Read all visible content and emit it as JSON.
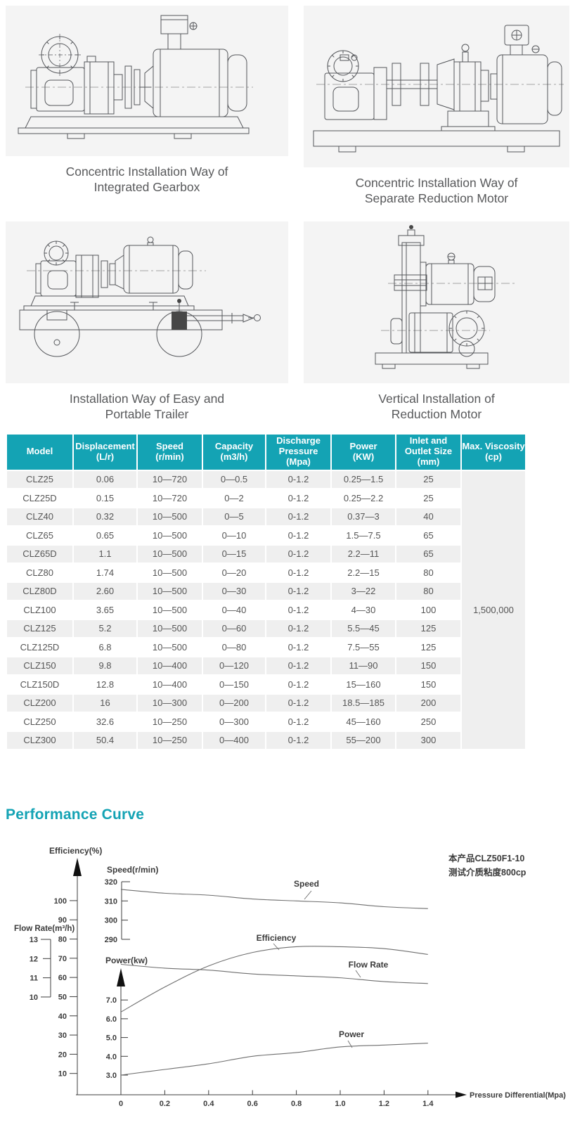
{
  "page": {
    "heading_performance": "Performance Curve"
  },
  "installation": {
    "items": [
      {
        "caption": [
          "Concentric Installation Way of",
          "Integrated Gearbox"
        ]
      },
      {
        "caption": [
          "Concentric Installation Way of",
          "Separate Reduction Motor"
        ]
      },
      {
        "caption": [
          "Installation Way of Easy and",
          "Portable Trailer"
        ]
      },
      {
        "caption": [
          "Vertical Installation of",
          "Reduction Motor"
        ]
      }
    ]
  },
  "spec_table": {
    "headers": [
      {
        "lines": [
          "Model"
        ]
      },
      {
        "lines": [
          "Displacement",
          "(L/r)"
        ]
      },
      {
        "lines": [
          "Speed",
          "(r/min)"
        ]
      },
      {
        "lines": [
          "Capacity",
          "(m3/h)"
        ]
      },
      {
        "lines": [
          "Discharge",
          "Pressure",
          "(Mpa)"
        ]
      },
      {
        "lines": [
          "Power",
          "(KW)"
        ]
      },
      {
        "lines": [
          "Inlet and",
          "Outlet Size",
          "(mm)"
        ]
      },
      {
        "lines": [
          "Max. Viscosity",
          "(cp)"
        ]
      }
    ],
    "rows": [
      [
        "CLZ25",
        "0.06",
        "10—720",
        "0—0.5",
        "0-1.2",
        "0.25—1.5",
        "25"
      ],
      [
        "CLZ25D",
        "0.15",
        "10—720",
        "0—2",
        "0-1.2",
        "0.25—2.2",
        "25"
      ],
      [
        "CLZ40",
        "0.32",
        "10—500",
        "0—5",
        "0-1.2",
        "0.37—3",
        "40"
      ],
      [
        "CLZ65",
        "0.65",
        "10—500",
        "0—10",
        "0-1.2",
        "1.5—7.5",
        "65"
      ],
      [
        "CLZ65D",
        "1.1",
        "10—500",
        "0—15",
        "0-1.2",
        "2.2—11",
        "65"
      ],
      [
        "CLZ80",
        "1.74",
        "10—500",
        "0—20",
        "0-1.2",
        "2.2—15",
        "80"
      ],
      [
        "CLZ80D",
        "2.60",
        "10—500",
        "0—30",
        "0-1.2",
        "3—22",
        "80"
      ],
      [
        "CLZ100",
        "3.65",
        "10—500",
        "0—40",
        "0-1.2",
        "4—30",
        "100"
      ],
      [
        "CLZ125",
        "5.2",
        "10—500",
        "0—60",
        "0-1.2",
        "5.5—45",
        "125"
      ],
      [
        "CLZ125D",
        "6.8",
        "10—500",
        "0—80",
        "0-1.2",
        "7.5—55",
        "125"
      ],
      [
        "CLZ150",
        "9.8",
        "10—400",
        "0—120",
        "0-1.2",
        "11—90",
        "150"
      ],
      [
        "CLZ150D",
        "12.8",
        "10—400",
        "0—150",
        "0-1.2",
        "15—160",
        "150"
      ],
      [
        "CLZ200",
        "16",
        "10—300",
        "0—200",
        "0-1.2",
        "18.5—185",
        "200"
      ],
      [
        "CLZ250",
        "32.6",
        "10—250",
        "0—300",
        "0-1.2",
        "45—160",
        "250"
      ],
      [
        "CLZ300",
        "50.4",
        "10—250",
        "0—400",
        "0-1.2",
        "55—200",
        "300"
      ]
    ],
    "max_viscosity_value": "1,500,000"
  },
  "chart_data": {
    "type": "line",
    "title": "Performance Curve",
    "xlabel": "Pressure Differential(Mpa)",
    "x": [
      0,
      0.2,
      0.4,
      0.6,
      0.8,
      1.0,
      1.2,
      1.4
    ],
    "x_tick_labels": [
      "0",
      "0.2",
      "0.4",
      "0.6",
      "0.8",
      "1.0",
      "1.2",
      "1.4"
    ],
    "grid": false,
    "legend_position": "labels-on-curves",
    "axes": {
      "efficiency": {
        "label": "Efficiency(%)",
        "ticks": [
          10,
          20,
          30,
          40,
          50,
          60,
          70,
          80,
          90,
          100
        ]
      },
      "speed": {
        "label": "Speed(r/min)",
        "ticks": [
          290,
          300,
          310,
          320
        ]
      },
      "flow": {
        "label": "Flow Rate(m³/h)",
        "ticks": [
          10,
          11,
          12,
          13
        ]
      },
      "power": {
        "label": "Power(kw)",
        "ticks": [
          "3.0",
          "4.0",
          "5.0",
          "6.0",
          "7.0"
        ]
      }
    },
    "series": [
      {
        "name": "Speed",
        "axis": "speed",
        "unit": "r/min",
        "values": [
          316,
          314,
          313,
          311,
          310,
          309,
          307,
          306
        ]
      },
      {
        "name": "Efficiency",
        "axis": "efficiency",
        "unit": "%",
        "values": [
          42,
          55,
          66,
          73,
          76,
          76,
          75,
          72
        ]
      },
      {
        "name": "Flow Rate",
        "axis": "flow",
        "unit": "m3/h",
        "values": [
          11.7,
          11.5,
          11.4,
          11.2,
          11.1,
          11.0,
          10.8,
          10.7
        ]
      },
      {
        "name": "Power",
        "axis": "power",
        "unit": "kw",
        "values": [
          3.0,
          3.3,
          3.6,
          4.0,
          4.2,
          4.5,
          4.6,
          4.7
        ]
      }
    ],
    "annotation": [
      "本产品CLZ50F1-10",
      "测试介质粘度800cp"
    ]
  }
}
